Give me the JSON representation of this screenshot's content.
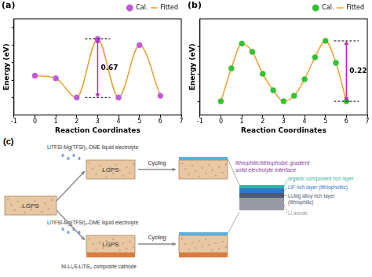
{
  "chart_data": [
    {
      "type": "scatter",
      "title": "(a)",
      "x_label": "Reaction Coordinates",
      "y_label": "Energy (eV)",
      "xlim": [
        -1,
        7
      ],
      "xticks": [
        -1,
        0,
        1,
        2,
        3,
        4,
        5,
        6,
        7
      ],
      "ylim": [
        -0.2,
        0.9
      ],
      "yticks": [
        0,
        0.2,
        0.4,
        0.6,
        0.8
      ],
      "tick_labels": "x",
      "grid": false,
      "legend": "upper right",
      "series": [
        {
          "name": "Cal.",
          "type": "scatter",
          "marker": "circle",
          "color": "#c05cd8",
          "x": [
            0,
            1,
            2,
            3,
            4,
            5,
            6
          ],
          "values": [
            0.25,
            0.22,
            0.0,
            0.67,
            0.0,
            0.6,
            0.02
          ]
        },
        {
          "name": "Fitted",
          "type": "line",
          "line_style": "solid",
          "color": "#f0a030",
          "x": [
            0,
            1,
            2,
            3,
            4,
            5,
            6
          ],
          "values": [
            0.25,
            0.22,
            0.0,
            0.67,
            0.0,
            0.6,
            0.02
          ]
        }
      ],
      "annotations": [
        {
          "label": "0.67",
          "x": 3,
          "from": 0.0,
          "to": 0.67,
          "color": "#d020c0"
        }
      ]
    },
    {
      "type": "scatter",
      "title": "(b)",
      "x_label": "Reaction Coordinates",
      "y_label": "Energy (eV)",
      "xlim": [
        -1,
        7
      ],
      "xticks": [
        -1,
        0,
        1,
        2,
        3,
        4,
        5,
        6,
        7
      ],
      "ylim": [
        -0.05,
        0.3
      ],
      "yticks": [
        0,
        0.1,
        0.2
      ],
      "tick_labels": "x",
      "grid": false,
      "legend": "upper right",
      "series": [
        {
          "name": "Cal.",
          "type": "scatter",
          "marker": "circle",
          "color": "#33c233",
          "x": [
            0,
            0.5,
            1,
            1.5,
            2,
            2.5,
            3,
            3.5,
            4,
            4.5,
            5,
            5.5,
            6
          ],
          "values": [
            0.0,
            0.12,
            0.21,
            0.18,
            0.1,
            0.04,
            0.0,
            0.02,
            0.08,
            0.16,
            0.22,
            0.14,
            0.0
          ]
        },
        {
          "name": "Fitted",
          "type": "line",
          "line_style": "solid",
          "color": "#f0a030",
          "x": [
            0,
            0.5,
            1,
            1.5,
            2,
            2.5,
            3,
            3.5,
            4,
            4.5,
            5,
            5.5,
            6
          ],
          "values": [
            0.0,
            0.12,
            0.21,
            0.18,
            0.1,
            0.04,
            0.0,
            0.02,
            0.08,
            0.16,
            0.22,
            0.14,
            0.0
          ]
        }
      ],
      "annotations": [
        {
          "label": "0.22",
          "x": 6,
          "from": 0.0,
          "to": 0.22,
          "color": "#d020c0"
        }
      ]
    }
  ],
  "diagram": {
    "label": "(c)",
    "start_box": "LGPS",
    "upper_path": {
      "electrolyte": "LiTFSI-Mg(TFSI)₂-DME liquid electrolyte",
      "box": "LGPS",
      "step": "Cycling"
    },
    "lower_path": {
      "electrolyte": "LiTFSI-Mg(TFSI)₂-DME liquid electrolyte",
      "box": "LGPS",
      "cathode": "Ni-Li₂S-LiTiS₂ composite cathode",
      "step": "Cycling"
    },
    "interface": {
      "title_lines": [
        "lithiophilic/lithiophobic gradient",
        "solid electrolyte interface"
      ],
      "layers": [
        {
          "label_lines": [
            "organic component rich layer"
          ],
          "color": "#2fb3a3"
        },
        {
          "label_lines": [
            "LiF rich layer (lithiophobic)"
          ],
          "color": "#2f78d0"
        },
        {
          "label_lines": [
            "LiₓMg alloy rich layer",
            "(lithiophilic)"
          ],
          "color": "#4a5a72"
        },
        {
          "label_lines": [
            "Li anode"
          ],
          "color": "#9a9aa4"
        }
      ]
    }
  }
}
